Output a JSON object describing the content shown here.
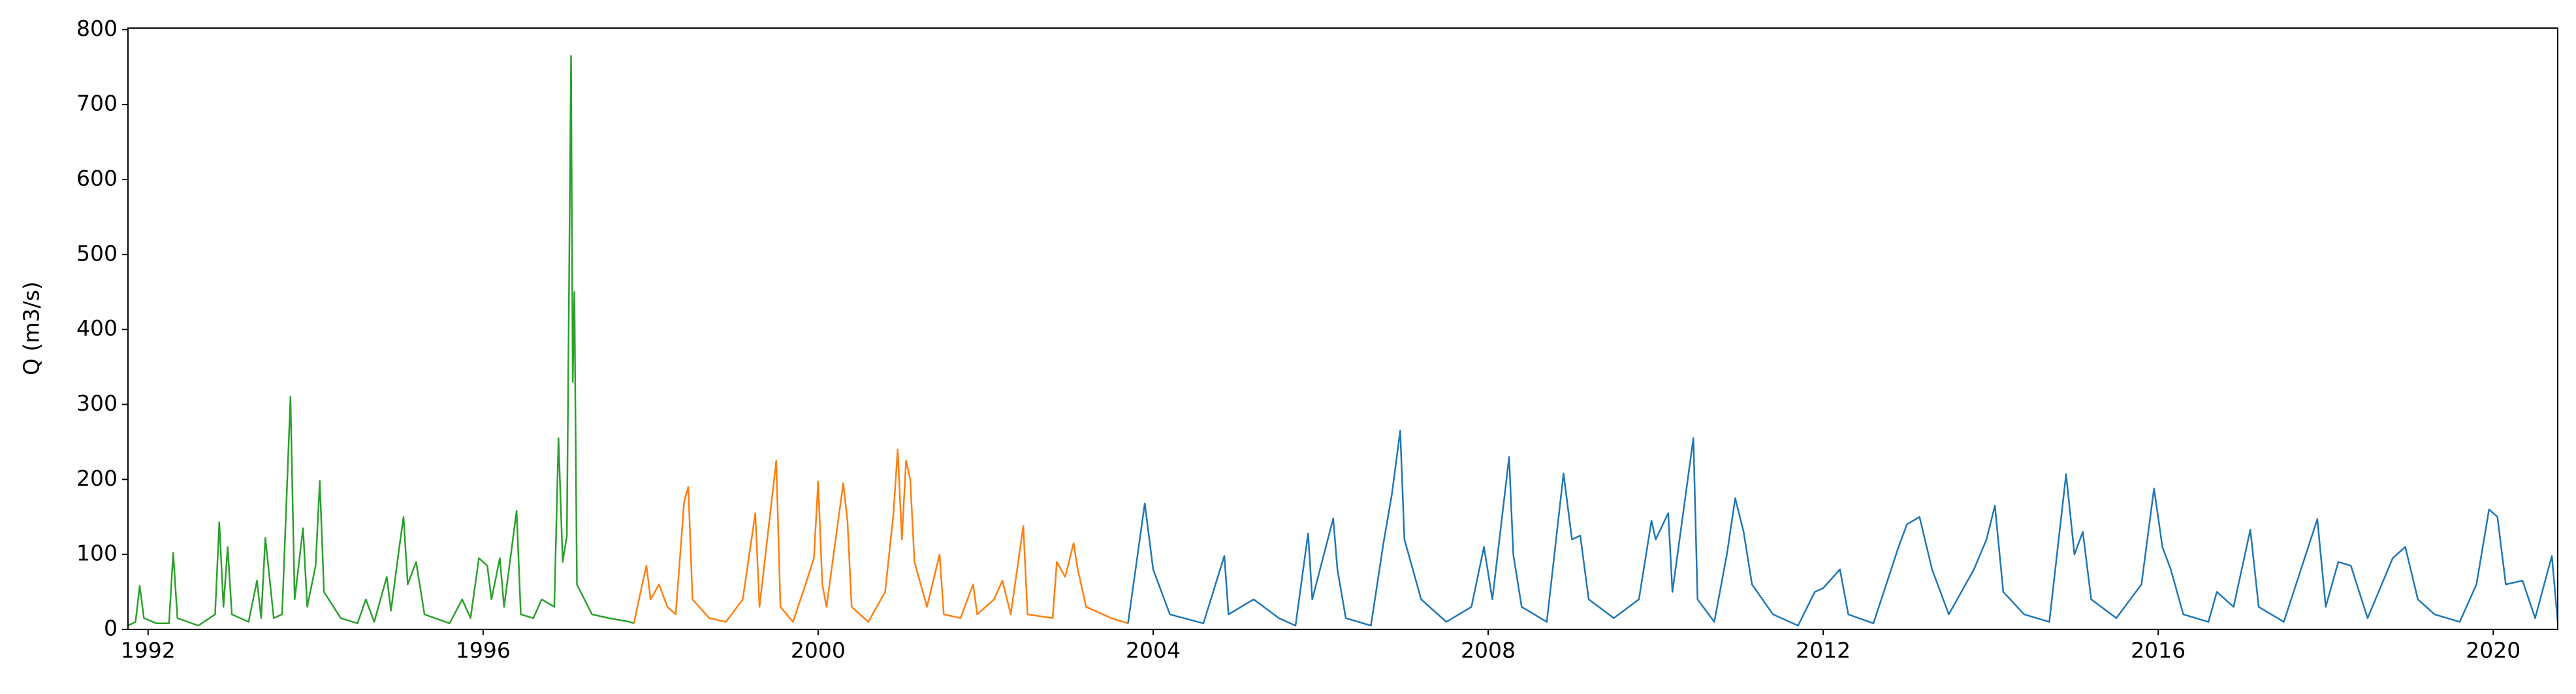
{
  "chart_data": {
    "type": "line",
    "ylabel": "Q (m3/s)",
    "xlim": [
      1991.76,
      2020.77
    ],
    "xticks": [
      1992,
      1996,
      2000,
      2004,
      2008,
      2012,
      2016,
      2020
    ],
    "ylim": [
      0,
      802
    ],
    "yticks": [
      0,
      100,
      200,
      300,
      400,
      500,
      600,
      700,
      800
    ],
    "series": [
      {
        "color": "#2ca02c",
        "x": [
          1991.76,
          1991.85,
          1991.9,
          1991.95,
          1992.1,
          1992.25,
          1992.3,
          1992.35,
          1992.6,
          1992.8,
          1992.85,
          1992.9,
          1992.95,
          1993.0,
          1993.2,
          1993.3,
          1993.35,
          1993.4,
          1993.5,
          1993.6,
          1993.7,
          1993.75,
          1993.85,
          1993.9,
          1994.0,
          1994.05,
          1994.1,
          1994.3,
          1994.5,
          1994.6,
          1994.7,
          1994.85,
          1994.9,
          1995.0,
          1995.05,
          1995.1,
          1995.2,
          1995.3,
          1995.6,
          1995.75,
          1995.85,
          1995.95,
          1996.05,
          1996.1,
          1996.2,
          1996.25,
          1996.4,
          1996.45,
          1996.6,
          1996.7,
          1996.85,
          1996.9,
          1996.95,
          1997.0,
          1997.05,
          1997.07,
          1997.09,
          1997.12,
          1997.3,
          1997.5,
          1997.75,
          1997.8
        ],
        "values": [
          5,
          10,
          58,
          15,
          8,
          8,
          102,
          15,
          5,
          20,
          143,
          30,
          110,
          20,
          10,
          65,
          15,
          122,
          15,
          20,
          310,
          40,
          135,
          30,
          85,
          198,
          50,
          15,
          8,
          40,
          10,
          70,
          25,
          110,
          150,
          60,
          90,
          20,
          8,
          40,
          15,
          95,
          85,
          40,
          95,
          30,
          158,
          20,
          15,
          40,
          30,
          255,
          90,
          125,
          765,
          330,
          450,
          60,
          20,
          15,
          10,
          8
        ]
      },
      {
        "color": "#ff7f0e",
        "x": [
          1997.8,
          1997.9,
          1997.95,
          1998.0,
          1998.1,
          1998.2,
          1998.3,
          1998.4,
          1998.45,
          1998.5,
          1998.7,
          1998.9,
          1999.1,
          1999.25,
          1999.3,
          1999.5,
          1999.55,
          1999.7,
          1999.85,
          1999.95,
          2000.0,
          2000.05,
          2000.1,
          2000.3,
          2000.35,
          2000.4,
          2000.6,
          2000.8,
          2000.9,
          2000.95,
          2001.0,
          2001.05,
          2001.1,
          2001.15,
          2001.3,
          2001.45,
          2001.5,
          2001.7,
          2001.85,
          2001.9,
          2002.1,
          2002.2,
          2002.3,
          2002.45,
          2002.5,
          2002.8,
          2002.85,
          2002.95,
          2003.05,
          2003.1,
          2003.2,
          2003.5,
          2003.7
        ],
        "values": [
          8,
          60,
          85,
          40,
          60,
          30,
          20,
          170,
          190,
          40,
          15,
          10,
          40,
          155,
          30,
          225,
          30,
          10,
          60,
          95,
          197,
          60,
          30,
          195,
          145,
          30,
          10,
          50,
          155,
          240,
          120,
          225,
          200,
          90,
          30,
          100,
          20,
          15,
          60,
          20,
          40,
          65,
          20,
          138,
          20,
          15,
          90,
          70,
          115,
          80,
          30,
          15,
          8
        ]
      },
      {
        "color": "#1f77b4",
        "x": [
          2003.7,
          2003.9,
          2004.0,
          2004.2,
          2004.6,
          2004.85,
          2004.9,
          2005.2,
          2005.5,
          2005.7,
          2005.85,
          2005.9,
          2006.15,
          2006.2,
          2006.3,
          2006.6,
          2006.75,
          2006.85,
          2006.95,
          2007.0,
          2007.2,
          2007.5,
          2007.8,
          2007.95,
          2008.05,
          2008.25,
          2008.3,
          2008.4,
          2008.7,
          2008.9,
          2009.0,
          2009.1,
          2009.2,
          2009.5,
          2009.8,
          2009.95,
          2010.0,
          2010.15,
          2010.2,
          2010.45,
          2010.5,
          2010.7,
          2010.85,
          2010.95,
          2011.05,
          2011.15,
          2011.4,
          2011.7,
          2011.9,
          2012.0,
          2012.2,
          2012.3,
          2012.6,
          2012.9,
          2013.0,
          2013.15,
          2013.3,
          2013.5,
          2013.8,
          2013.95,
          2014.05,
          2014.15,
          2014.4,
          2014.7,
          2014.9,
          2015.0,
          2015.1,
          2015.2,
          2015.5,
          2015.8,
          2015.95,
          2016.05,
          2016.15,
          2016.3,
          2016.6,
          2016.7,
          2016.9,
          2017.1,
          2017.2,
          2017.5,
          2017.9,
          2018.0,
          2018.15,
          2018.3,
          2018.5,
          2018.8,
          2018.95,
          2019.1,
          2019.3,
          2019.6,
          2019.8,
          2019.95,
          2020.05,
          2020.15,
          2020.35,
          2020.5,
          2020.7,
          2020.77
        ],
        "values": [
          8,
          168,
          80,
          20,
          8,
          98,
          20,
          40,
          15,
          5,
          128,
          40,
          148,
          80,
          15,
          5,
          115,
          180,
          265,
          120,
          40,
          10,
          30,
          110,
          40,
          230,
          100,
          30,
          10,
          208,
          120,
          125,
          40,
          15,
          40,
          145,
          120,
          155,
          50,
          255,
          40,
          10,
          100,
          175,
          130,
          60,
          20,
          5,
          50,
          55,
          80,
          20,
          8,
          110,
          140,
          150,
          80,
          20,
          80,
          120,
          165,
          50,
          20,
          10,
          207,
          100,
          130,
          40,
          15,
          60,
          188,
          110,
          80,
          20,
          10,
          50,
          30,
          133,
          30,
          10,
          147,
          30,
          90,
          85,
          15,
          95,
          110,
          40,
          20,
          10,
          60,
          160,
          150,
          60,
          65,
          15,
          98,
          10
        ]
      }
    ]
  }
}
